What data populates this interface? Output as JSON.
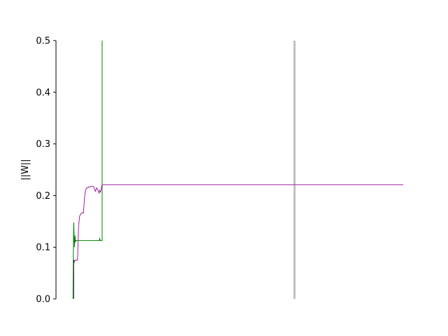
{
  "chart_data": {
    "type": "line",
    "title": "",
    "xlabel": "",
    "ylabel": "||W||",
    "xlim": [
      0,
      100
    ],
    "ylim": [
      0,
      0.5
    ],
    "yticks": [
      0.0,
      0.1,
      0.2,
      0.3,
      0.4,
      0.5
    ],
    "ytick_labels": [
      "0.0",
      "0.1",
      "0.2",
      "0.3",
      "0.4",
      "0.5"
    ],
    "grid": false,
    "legend": false,
    "vertical_line": {
      "x": 68.7,
      "color": "#bfbfbf"
    },
    "series": [
      {
        "name": "green",
        "color": "#008000",
        "x": [
          4.9,
          5.0,
          5.1,
          5.3,
          5.5,
          5.6,
          5.7,
          5.9,
          12.5,
          12.6,
          12.7,
          13.0,
          13.1,
          13.2,
          13.3,
          13.3,
          13.3
        ],
        "y": [
          0.0,
          0.09,
          0.148,
          0.1,
          0.123,
          0.11,
          0.113,
          0.113,
          0.113,
          0.118,
          0.113,
          0.113,
          0.113,
          0.113,
          0.113,
          0.22,
          0.5
        ]
      },
      {
        "name": "black",
        "color": "#333333",
        "x": [
          5.1,
          5.1,
          5.2,
          5.3
        ],
        "y": [
          0.0,
          0.075,
          0.075,
          0.07
        ]
      },
      {
        "name": "purple",
        "color": "#a020a0",
        "x": [
          5.3,
          5.6,
          6.2,
          6.5,
          6.8,
          7.2,
          7.6,
          7.9,
          8.2,
          8.5,
          8.8,
          9.1,
          9.4,
          9.7,
          10.1,
          10.5,
          10.9,
          11.3,
          11.7,
          12.1,
          12.4,
          12.6,
          12.8,
          13.0,
          13.2,
          13.3,
          15.0,
          40.0,
          68.7,
          100.0
        ],
        "y": [
          0.073,
          0.075,
          0.075,
          0.14,
          0.16,
          0.165,
          0.167,
          0.166,
          0.195,
          0.21,
          0.215,
          0.215,
          0.217,
          0.216,
          0.218,
          0.218,
          0.217,
          0.208,
          0.215,
          0.21,
          0.205,
          0.21,
          0.207,
          0.212,
          0.22,
          0.221,
          0.221,
          0.221,
          0.221,
          0.221
        ]
      }
    ]
  }
}
